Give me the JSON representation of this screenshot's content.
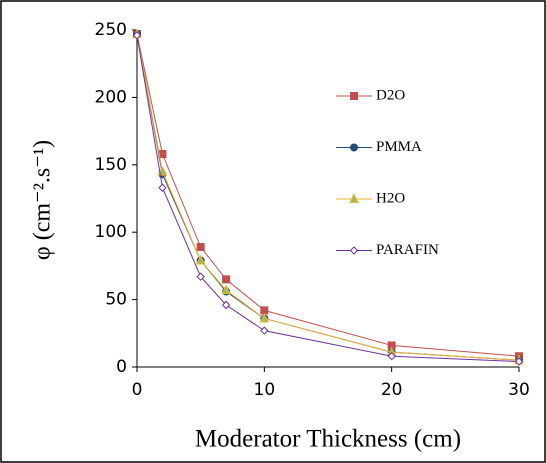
{
  "chart_data": {
    "type": "line",
    "xlabel": "Moderator Thickness (cm)",
    "ylabel": "φ (cm⁻².s⁻¹)",
    "x": [
      0,
      2,
      5,
      7,
      10,
      20,
      30
    ],
    "series": [
      {
        "name": "D2O",
        "color": "#c0504d",
        "marker": "square",
        "values": [
          247,
          158,
          89,
          65,
          42,
          16,
          8
        ]
      },
      {
        "name": "PMMA",
        "color": "#1f4e79",
        "marker": "circle",
        "values": [
          247,
          143,
          79,
          56,
          36,
          11,
          5
        ]
      },
      {
        "name": "H2O",
        "color": "#f0b030",
        "marker": "triangle",
        "values": [
          247,
          145,
          79,
          57,
          36,
          11,
          5
        ]
      },
      {
        "name": "PARAFIN",
        "color": "#7030a0",
        "marker": "diamond",
        "values": [
          246,
          133,
          67,
          46,
          27,
          8,
          4
        ]
      }
    ],
    "xlim": [
      0,
      30
    ],
    "xticks": [
      0,
      10,
      20,
      30
    ],
    "ylim": [
      0,
      250
    ],
    "yticks": [
      0,
      50,
      100,
      150,
      200,
      250
    ],
    "grid": false
  }
}
